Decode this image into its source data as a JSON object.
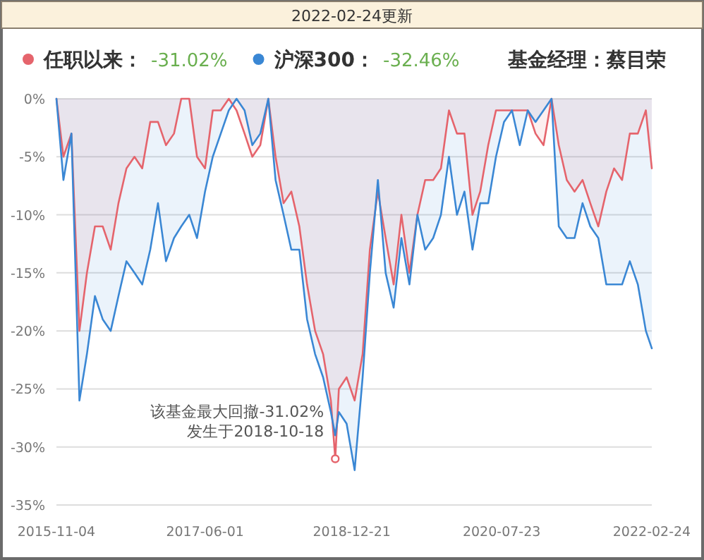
{
  "chart_data": {
    "type": "area",
    "title": "2022-02-24更新",
    "subtitle": "基金经理：蔡目荣",
    "x": [
      "2015-11-04",
      "2015-12-01",
      "2016-01-01",
      "2016-02-01",
      "2016-03-01",
      "2016-04-01",
      "2016-05-01",
      "2016-06-01",
      "2016-07-01",
      "2016-08-01",
      "2016-09-01",
      "2016-10-01",
      "2016-11-01",
      "2016-12-01",
      "2017-01-01",
      "2017-02-01",
      "2017-03-01",
      "2017-04-01",
      "2017-05-01",
      "2017-06-01",
      "2017-07-01",
      "2017-08-01",
      "2017-09-01",
      "2017-10-01",
      "2017-11-01",
      "2017-12-01",
      "2018-01-01",
      "2018-02-01",
      "2018-03-01",
      "2018-04-01",
      "2018-05-01",
      "2018-06-01",
      "2018-07-01",
      "2018-08-01",
      "2018-09-01",
      "2018-10-01",
      "2018-10-18",
      "2018-11-01",
      "2018-12-01",
      "2019-01-01",
      "2019-02-01",
      "2019-03-01",
      "2019-04-01",
      "2019-05-01",
      "2019-06-01",
      "2019-07-01",
      "2019-08-01",
      "2019-09-01",
      "2019-10-01",
      "2019-11-01",
      "2019-12-01",
      "2020-01-01",
      "2020-02-01",
      "2020-03-01",
      "2020-04-01",
      "2020-05-01",
      "2020-06-01",
      "2020-07-01",
      "2020-08-01",
      "2020-09-01",
      "2020-10-01",
      "2020-11-01",
      "2020-12-01",
      "2021-01-01",
      "2021-02-01",
      "2021-03-01",
      "2021-04-01",
      "2021-05-01",
      "2021-06-01",
      "2021-07-01",
      "2021-08-01",
      "2021-09-01",
      "2021-10-01",
      "2021-11-01",
      "2021-12-01",
      "2022-01-01",
      "2022-02-01",
      "2022-02-24"
    ],
    "series": [
      {
        "name": "任职以来：",
        "color": "#e5646c",
        "values": [
          0,
          -5,
          -3,
          -20,
          -15,
          -11,
          -11,
          -13,
          -9,
          -6,
          -5,
          -6,
          -2,
          -2,
          -4,
          -3,
          0,
          0,
          -5,
          -6,
          -1,
          -1,
          0,
          -1,
          -3,
          -5,
          -4,
          0,
          -5,
          -9,
          -8,
          -11,
          -16,
          -20,
          -22,
          -26,
          -31.02,
          -25,
          -24,
          -26,
          -22,
          -13,
          -8,
          -12,
          -16,
          -10,
          -15,
          -10,
          -7,
          -7,
          -6,
          -1,
          -3,
          -3,
          -10,
          -8,
          -4,
          -1,
          -1,
          -1,
          -1,
          -1,
          -3,
          -4,
          0,
          -4,
          -7,
          -8,
          -7,
          -9,
          -11,
          -8,
          -6,
          -7,
          -3,
          -3,
          -1,
          -6
        ]
      },
      {
        "name": "沪深300：",
        "color": "#3a87d4",
        "values": [
          0,
          -7,
          -3,
          -26,
          -22,
          -17,
          -19,
          -20,
          -17,
          -14,
          -15,
          -16,
          -13,
          -9,
          -14,
          -12,
          -11,
          -10,
          -12,
          -8,
          -5,
          -3,
          -1,
          0,
          -1,
          -4,
          -3,
          0,
          -7,
          -10,
          -13,
          -13,
          -19,
          -22,
          -24,
          -27,
          -29,
          -27,
          -28,
          -32,
          -24,
          -15,
          -7,
          -15,
          -18,
          -12,
          -16,
          -10,
          -13,
          -12,
          -10,
          -5,
          -10,
          -8,
          -13,
          -9,
          -9,
          -5,
          -2,
          -1,
          -4,
          -1,
          -2,
          -1,
          0,
          -11,
          -12,
          -12,
          -9,
          -11,
          -12,
          -16,
          -16,
          -16,
          -14,
          -16,
          -20,
          -21.5
        ]
      }
    ],
    "annotations": [
      "-31.02%",
      "-32.46%",
      {
        "text": "该基金最大回撤-31.02%\n发生于2018-10-18",
        "x": "2018-10-18",
        "y": -31.02
      }
    ],
    "xlim": [
      "2015-11-04",
      "2022-02-24"
    ],
    "xticks": [
      {
        "value": "2015-11-04",
        "label": "2015-11-04"
      },
      {
        "value": "2017-06-01",
        "label": "2017-06-01"
      },
      {
        "value": "2018-12-21",
        "label": "2018-12-21"
      },
      {
        "value": "2020-07-23",
        "label": "2020-07-23"
      },
      {
        "value": "2022-02-24",
        "label": "2022-02-24"
      }
    ],
    "ylim": [
      -35,
      0
    ],
    "yticks": [
      {
        "value": 0,
        "label": "0%"
      },
      {
        "value": -5,
        "label": "-5%"
      },
      {
        "value": -10,
        "label": "-10%"
      },
      {
        "value": -15,
        "label": "-15%"
      },
      {
        "value": -20,
        "label": "-20%"
      },
      {
        "value": -25,
        "label": "-25%"
      },
      {
        "value": -30,
        "label": "-30%"
      },
      {
        "value": -35,
        "label": "-35%"
      }
    ],
    "grid": "y",
    "legend": "top"
  }
}
